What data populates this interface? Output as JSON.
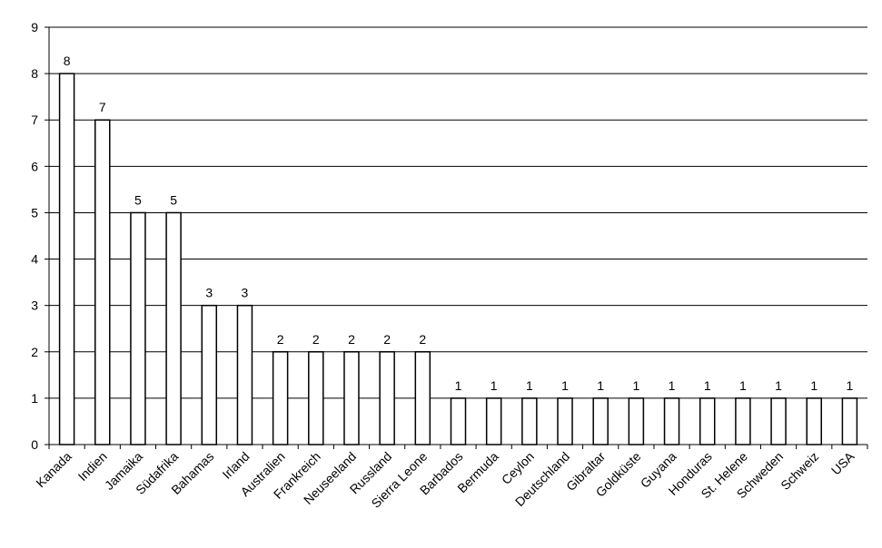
{
  "chart_data": {
    "type": "bar",
    "title": "",
    "xlabel": "",
    "ylabel": "",
    "ylim": [
      0,
      9
    ],
    "yticks": [
      0,
      1,
      2,
      3,
      4,
      5,
      6,
      7,
      8,
      9
    ],
    "grid": true,
    "legend": "none",
    "bar_fill": "#ffffff",
    "bar_stroke": "#000000",
    "categories": [
      "Kanada",
      "Indien",
      "Jamaika",
      "Südafrika",
      "Bahamas",
      "Irland",
      "Australien",
      "Frankreich",
      "Neuseeland",
      "Russland",
      "Sierra Leone",
      "Barbados",
      "Bermuda",
      "Ceylon",
      "Deutschland",
      "Gibraltar",
      "Goldküste",
      "Guyana",
      "Honduras",
      "St. Helene",
      "Schweden",
      "Schweiz",
      "USA"
    ],
    "values": [
      8,
      7,
      5,
      5,
      3,
      3,
      2,
      2,
      2,
      2,
      2,
      1,
      1,
      1,
      1,
      1,
      1,
      1,
      1,
      1,
      1,
      1,
      1
    ]
  }
}
